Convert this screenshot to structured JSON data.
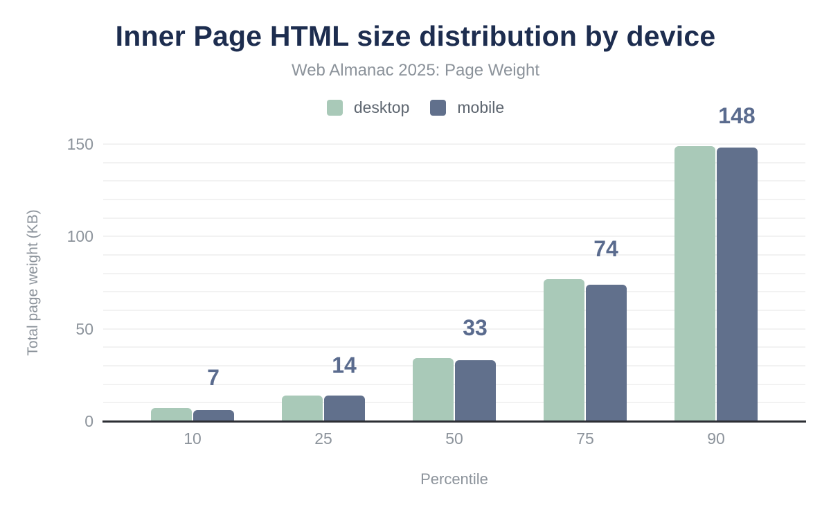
{
  "header": {
    "title": "Inner Page HTML size distribution by device",
    "subtitle": "Web Almanac 2025: Page Weight"
  },
  "chart_data": {
    "type": "bar",
    "title": "Inner Page HTML size distribution by device",
    "subtitle": "Web Almanac 2025: Page Weight",
    "categories": [
      "10",
      "25",
      "50",
      "75",
      "90"
    ],
    "series": [
      {
        "name": "desktop",
        "color": "#a9c9b8",
        "values": [
          7,
          14,
          34,
          77,
          149
        ]
      },
      {
        "name": "mobile",
        "color": "#61708c",
        "values": [
          6,
          14,
          33,
          74,
          148
        ]
      }
    ],
    "annotations": [
      "7",
      "14",
      "33",
      "74",
      "148"
    ],
    "xlabel": "Percentile",
    "ylabel": "Total page weight (KB)",
    "ylim": [
      0,
      150
    ],
    "yticks": [
      0,
      50,
      100,
      150
    ],
    "grid": {
      "visible": true,
      "minor_step": 10
    },
    "legend_position": "top"
  },
  "colors": {
    "title": "#1d2d4f",
    "subtitle": "#8b929a",
    "legend_text": "#5e6670",
    "axis_text": "#8c939b",
    "annotation": "#5a6b8e",
    "axis_line": "#2c2e34",
    "gridline": "#f2f2f2"
  }
}
